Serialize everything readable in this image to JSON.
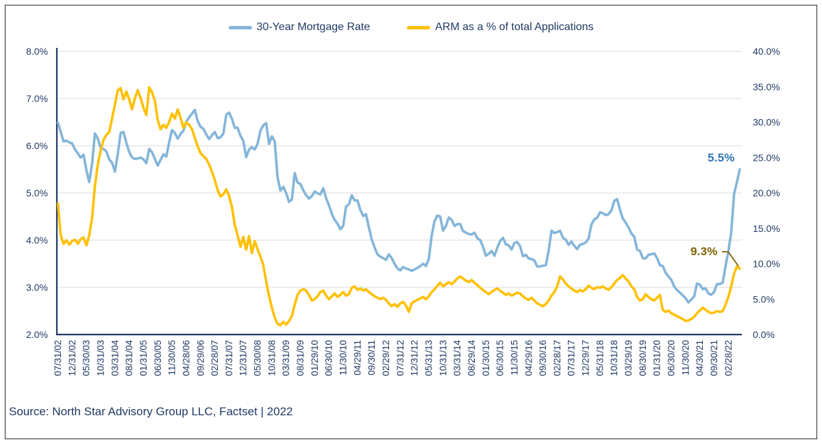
{
  "source": "Source: North Star Advisory Group LLC, Factset | 2022",
  "annotations": {
    "mortgage_end": {
      "text": "5.5%",
      "color": "#2E75B6"
    },
    "arm_end": {
      "text": "9.3%",
      "color": "#7F6000"
    }
  },
  "chart_data": {
    "type": "line",
    "title": "",
    "x_unit": "monthly",
    "x_start": "07/2002",
    "x_end": "06/2022",
    "x_tick_every_n_months": 5,
    "x_tick_labels": [
      "07/31/02",
      "12/31/02",
      "05/30/03",
      "10/31/03",
      "03/31/04",
      "08/31/04",
      "01/31/05",
      "06/30/05",
      "11/30/05",
      "04/28/06",
      "09/29/06",
      "02/28/07",
      "07/31/07",
      "12/31/07",
      "05/30/08",
      "10/31/08",
      "03/31/09",
      "08/31/09",
      "01/29/10",
      "06/30/10",
      "11/30/10",
      "04/29/11",
      "09/30/11",
      "02/29/12",
      "07/31/12",
      "12/31/12",
      "05/31/13",
      "10/31/13",
      "03/31/14",
      "08/29/14",
      "01/30/15",
      "06/30/15",
      "11/30/15",
      "04/29/16",
      "09/30/16",
      "02/28/17",
      "07/31/17",
      "12/29/17",
      "05/31/18",
      "10/31/18",
      "03/29/19",
      "08/30/19",
      "01/31/20",
      "06/30/20",
      "11/30/20",
      "04/30/21",
      "09/30/21",
      "02/28/22"
    ],
    "left_axis": {
      "min": 2.0,
      "max": 8.0,
      "format": "percent",
      "tick_labels": [
        "8.0%",
        "7.0%",
        "6.0%",
        "5.0%",
        "4.0%",
        "3.0%",
        "2.0%"
      ]
    },
    "right_axis": {
      "min": 0.0,
      "max": 40.0,
      "format": "percent",
      "tick_labels": [
        "40.0%",
        "35.0%",
        "30.0%",
        "25.0%",
        "20.0%",
        "15.0%",
        "10.0%",
        "5.0%",
        "0.0%"
      ]
    },
    "grid": "horizontal",
    "legend_position": "top-center",
    "series": [
      {
        "name": "30-Year Mortgage Rate",
        "axis": "left",
        "color": "#84B5D9",
        "end_label": "5.5%",
        "values": [
          6.49,
          6.29,
          6.09,
          6.11,
          6.07,
          6.05,
          5.92,
          5.84,
          5.75,
          5.81,
          5.48,
          5.23,
          5.63,
          6.26,
          6.15,
          5.95,
          5.93,
          5.88,
          5.71,
          5.64,
          5.45,
          5.83,
          6.27,
          6.29,
          6.06,
          5.87,
          5.75,
          5.72,
          5.73,
          5.75,
          5.71,
          5.63,
          5.93,
          5.86,
          5.72,
          5.58,
          5.7,
          5.82,
          5.77,
          6.07,
          6.33,
          6.27,
          6.15,
          6.25,
          6.32,
          6.51,
          6.6,
          6.68,
          6.76,
          6.52,
          6.4,
          6.36,
          6.24,
          6.14,
          6.22,
          6.29,
          6.16,
          6.18,
          6.26,
          6.66,
          6.7,
          6.57,
          6.38,
          6.38,
          6.21,
          6.1,
          5.76,
          5.92,
          5.97,
          5.92,
          6.04,
          6.32,
          6.43,
          6.48,
          6.04,
          6.2,
          6.09,
          5.33,
          5.05,
          5.13,
          5.0,
          4.81,
          4.86,
          5.42,
          5.22,
          5.19,
          5.06,
          4.95,
          4.88,
          4.93,
          5.03,
          4.99,
          4.97,
          5.1,
          4.89,
          4.74,
          4.56,
          4.43,
          4.35,
          4.23,
          4.3,
          4.71,
          4.76,
          4.95,
          4.84,
          4.84,
          4.64,
          4.51,
          4.55,
          4.27,
          4.01,
          3.85,
          3.7,
          3.65,
          3.62,
          3.58,
          3.7,
          3.62,
          3.5,
          3.4,
          3.36,
          3.43,
          3.4,
          3.38,
          3.35,
          3.38,
          3.41,
          3.45,
          3.5,
          3.45,
          3.6,
          4.1,
          4.4,
          4.52,
          4.5,
          4.2,
          4.3,
          4.48,
          4.43,
          4.3,
          4.34,
          4.34,
          4.19,
          4.16,
          4.13,
          4.12,
          4.16,
          4.04,
          4.0,
          3.86,
          3.67,
          3.71,
          3.77,
          3.67,
          3.84,
          3.98,
          4.05,
          3.91,
          3.89,
          3.8,
          3.94,
          3.96,
          3.87,
          3.66,
          3.69,
          3.61,
          3.6,
          3.57,
          3.44,
          3.44,
          3.46,
          3.47,
          3.77,
          4.2,
          4.15,
          4.17,
          4.2,
          4.05,
          4.01,
          3.9,
          3.97,
          3.88,
          3.81,
          3.9,
          3.92,
          3.95,
          4.03,
          4.33,
          4.44,
          4.47,
          4.59,
          4.57,
          4.53,
          4.55,
          4.63,
          4.83,
          4.87,
          4.64,
          4.46,
          4.37,
          4.27,
          4.14,
          4.07,
          3.8,
          3.77,
          3.62,
          3.61,
          3.69,
          3.7,
          3.72,
          3.62,
          3.47,
          3.45,
          3.31,
          3.23,
          3.16,
          3.02,
          2.94,
          2.89,
          2.83,
          2.77,
          2.68,
          2.74,
          2.81,
          3.08,
          3.06,
          2.96,
          2.98,
          2.87,
          2.84,
          2.9,
          3.07,
          3.07,
          3.1,
          3.45,
          3.76,
          4.17,
          4.98,
          5.23,
          5.5
        ]
      },
      {
        "name": "ARM as a % of total Applications",
        "axis": "right",
        "color": "#FFC000",
        "end_label": "9.3%",
        "values": [
          18.5,
          14.0,
          12.8,
          13.3,
          12.7,
          13.2,
          13.4,
          12.8,
          13.5,
          13.7,
          12.6,
          14.0,
          16.5,
          21.0,
          24.0,
          26.0,
          27.5,
          28.2,
          28.6,
          30.5,
          32.5,
          34.5,
          34.8,
          33.2,
          34.3,
          33.2,
          31.8,
          33.4,
          34.5,
          33.4,
          32.0,
          31.0,
          34.9,
          34.2,
          33.0,
          30.3,
          29.0,
          29.6,
          29.2,
          30.0,
          31.2,
          30.5,
          31.8,
          30.6,
          29.2,
          30.0,
          29.6,
          29.0,
          27.8,
          26.6,
          25.6,
          25.2,
          24.8,
          24.0,
          23.0,
          21.8,
          20.4,
          19.5,
          19.8,
          20.5,
          19.6,
          18.0,
          15.5,
          14.0,
          12.4,
          13.8,
          12.0,
          13.9,
          11.5,
          13.2,
          12.0,
          11.0,
          9.8,
          7.5,
          5.5,
          3.8,
          2.4,
          1.5,
          1.3,
          1.8,
          1.4,
          1.9,
          2.6,
          4.2,
          5.6,
          6.2,
          6.4,
          6.2,
          5.6,
          4.8,
          5.0,
          5.4,
          6.0,
          6.2,
          5.5,
          5.0,
          5.4,
          5.8,
          5.3,
          5.6,
          6.0,
          5.5,
          5.7,
          6.6,
          6.8,
          6.3,
          6.5,
          6.2,
          6.4,
          6.0,
          5.7,
          5.4,
          5.2,
          5.0,
          5.2,
          4.9,
          4.4,
          4.0,
          4.3,
          3.9,
          4.4,
          4.6,
          4.1,
          3.2,
          4.4,
          4.7,
          4.9,
          5.1,
          5.3,
          5.0,
          5.4,
          6.0,
          6.4,
          6.9,
          7.3,
          6.8,
          7.1,
          7.4,
          7.1,
          7.5,
          7.9,
          8.2,
          7.9,
          7.6,
          7.4,
          7.7,
          7.3,
          7.0,
          6.6,
          6.3,
          6.0,
          5.7,
          6.0,
          6.3,
          6.5,
          6.2,
          5.9,
          5.6,
          5.8,
          5.5,
          5.7,
          5.9,
          5.8,
          5.4,
          5.1,
          4.9,
          5.2,
          4.8,
          4.4,
          4.2,
          4.0,
          4.3,
          4.8,
          5.5,
          6.0,
          6.8,
          8.2,
          7.8,
          7.2,
          6.8,
          6.5,
          6.2,
          6.0,
          6.3,
          6.1,
          6.4,
          6.9,
          6.6,
          6.4,
          6.7,
          6.6,
          6.8,
          6.5,
          6.3,
          6.7,
          7.2,
          7.7,
          8.0,
          8.4,
          7.9,
          7.5,
          6.8,
          6.4,
          5.3,
          4.8,
          5.0,
          5.7,
          5.3,
          5.0,
          4.8,
          5.2,
          5.6,
          3.5,
          3.2,
          3.4,
          3.0,
          2.8,
          2.6,
          2.4,
          2.2,
          1.9,
          2.0,
          2.2,
          2.5,
          3.0,
          3.4,
          3.8,
          3.5,
          3.2,
          3.0,
          3.1,
          3.3,
          3.2,
          3.3,
          4.2,
          5.3,
          6.8,
          8.6,
          9.6,
          9.3
        ]
      }
    ]
  }
}
